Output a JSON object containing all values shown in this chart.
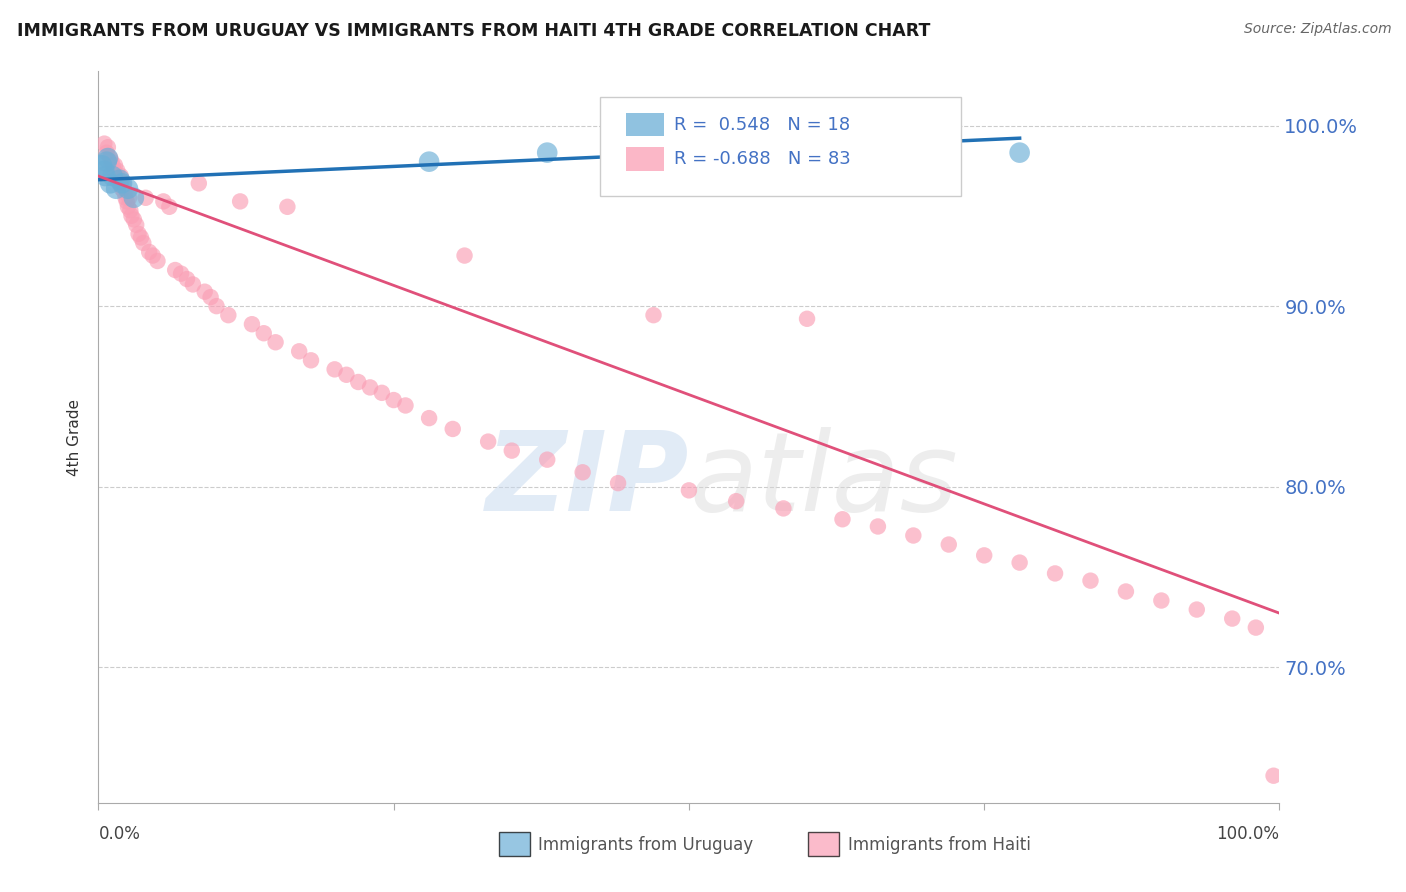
{
  "title": "IMMIGRANTS FROM URUGUAY VS IMMIGRANTS FROM HAITI 4TH GRADE CORRELATION CHART",
  "source": "Source: ZipAtlas.com",
  "ylabel": "4th Grade",
  "xlim": [
    0.0,
    1.0
  ],
  "ylim": [
    0.625,
    1.03
  ],
  "yticks": [
    0.7,
    0.8,
    0.9,
    1.0
  ],
  "ytick_labels": [
    "70.0%",
    "80.0%",
    "90.0%",
    "100.0%"
  ],
  "legend_R_uruguay": "R =  0.548",
  "legend_N_uruguay": "N = 18",
  "legend_R_haiti": "R = -0.688",
  "legend_N_haiti": "N = 83",
  "uruguay_color": "#6baed6",
  "haiti_color": "#fa9fb5",
  "uruguay_line_color": "#2171b5",
  "haiti_line_color": "#e0507a",
  "uruguay_trend_x": [
    0.0,
    0.78
  ],
  "uruguay_trend_y": [
    0.97,
    0.993
  ],
  "haiti_trend_x": [
    0.0,
    1.0
  ],
  "haiti_trend_y": [
    0.972,
    0.73
  ],
  "haiti_x": [
    0.005,
    0.007,
    0.008,
    0.01,
    0.011,
    0.012,
    0.013,
    0.014,
    0.015,
    0.016,
    0.017,
    0.018,
    0.019,
    0.02,
    0.021,
    0.022,
    0.023,
    0.024,
    0.025,
    0.026,
    0.027,
    0.028,
    0.03,
    0.032,
    0.034,
    0.036,
    0.038,
    0.04,
    0.043,
    0.046,
    0.05,
    0.055,
    0.06,
    0.065,
    0.07,
    0.075,
    0.08,
    0.085,
    0.09,
    0.095,
    0.1,
    0.11,
    0.12,
    0.13,
    0.14,
    0.15,
    0.16,
    0.17,
    0.18,
    0.2,
    0.21,
    0.22,
    0.23,
    0.24,
    0.25,
    0.26,
    0.28,
    0.3,
    0.31,
    0.33,
    0.35,
    0.38,
    0.41,
    0.44,
    0.47,
    0.5,
    0.54,
    0.58,
    0.6,
    0.63,
    0.66,
    0.69,
    0.72,
    0.75,
    0.78,
    0.81,
    0.84,
    0.87,
    0.9,
    0.93,
    0.96,
    0.98,
    0.995
  ],
  "haiti_y": [
    0.99,
    0.985,
    0.988,
    0.982,
    0.98,
    0.978,
    0.975,
    0.978,
    0.972,
    0.975,
    0.97,
    0.968,
    0.972,
    0.965,
    0.968,
    0.963,
    0.96,
    0.958,
    0.955,
    0.96,
    0.953,
    0.95,
    0.948,
    0.945,
    0.94,
    0.938,
    0.935,
    0.96,
    0.93,
    0.928,
    0.925,
    0.958,
    0.955,
    0.92,
    0.918,
    0.915,
    0.912,
    0.968,
    0.908,
    0.905,
    0.9,
    0.895,
    0.958,
    0.89,
    0.885,
    0.88,
    0.955,
    0.875,
    0.87,
    0.865,
    0.862,
    0.858,
    0.855,
    0.852,
    0.848,
    0.845,
    0.838,
    0.832,
    0.928,
    0.825,
    0.82,
    0.815,
    0.808,
    0.802,
    0.895,
    0.798,
    0.792,
    0.788,
    0.893,
    0.782,
    0.778,
    0.773,
    0.768,
    0.762,
    0.758,
    0.752,
    0.748,
    0.742,
    0.737,
    0.732,
    0.727,
    0.722,
    0.64
  ],
  "uruguay_x": [
    0.003,
    0.005,
    0.006,
    0.007,
    0.008,
    0.01,
    0.012,
    0.015,
    0.018,
    0.02,
    0.025,
    0.03,
    0.28,
    0.38,
    0.52,
    0.6,
    0.72,
    0.78
  ],
  "uruguay_y": [
    0.978,
    0.975,
    0.972,
    0.98,
    0.982,
    0.968,
    0.972,
    0.965,
    0.97,
    0.968,
    0.965,
    0.96,
    0.98,
    0.985,
    0.985,
    0.988,
    0.99,
    0.985
  ]
}
